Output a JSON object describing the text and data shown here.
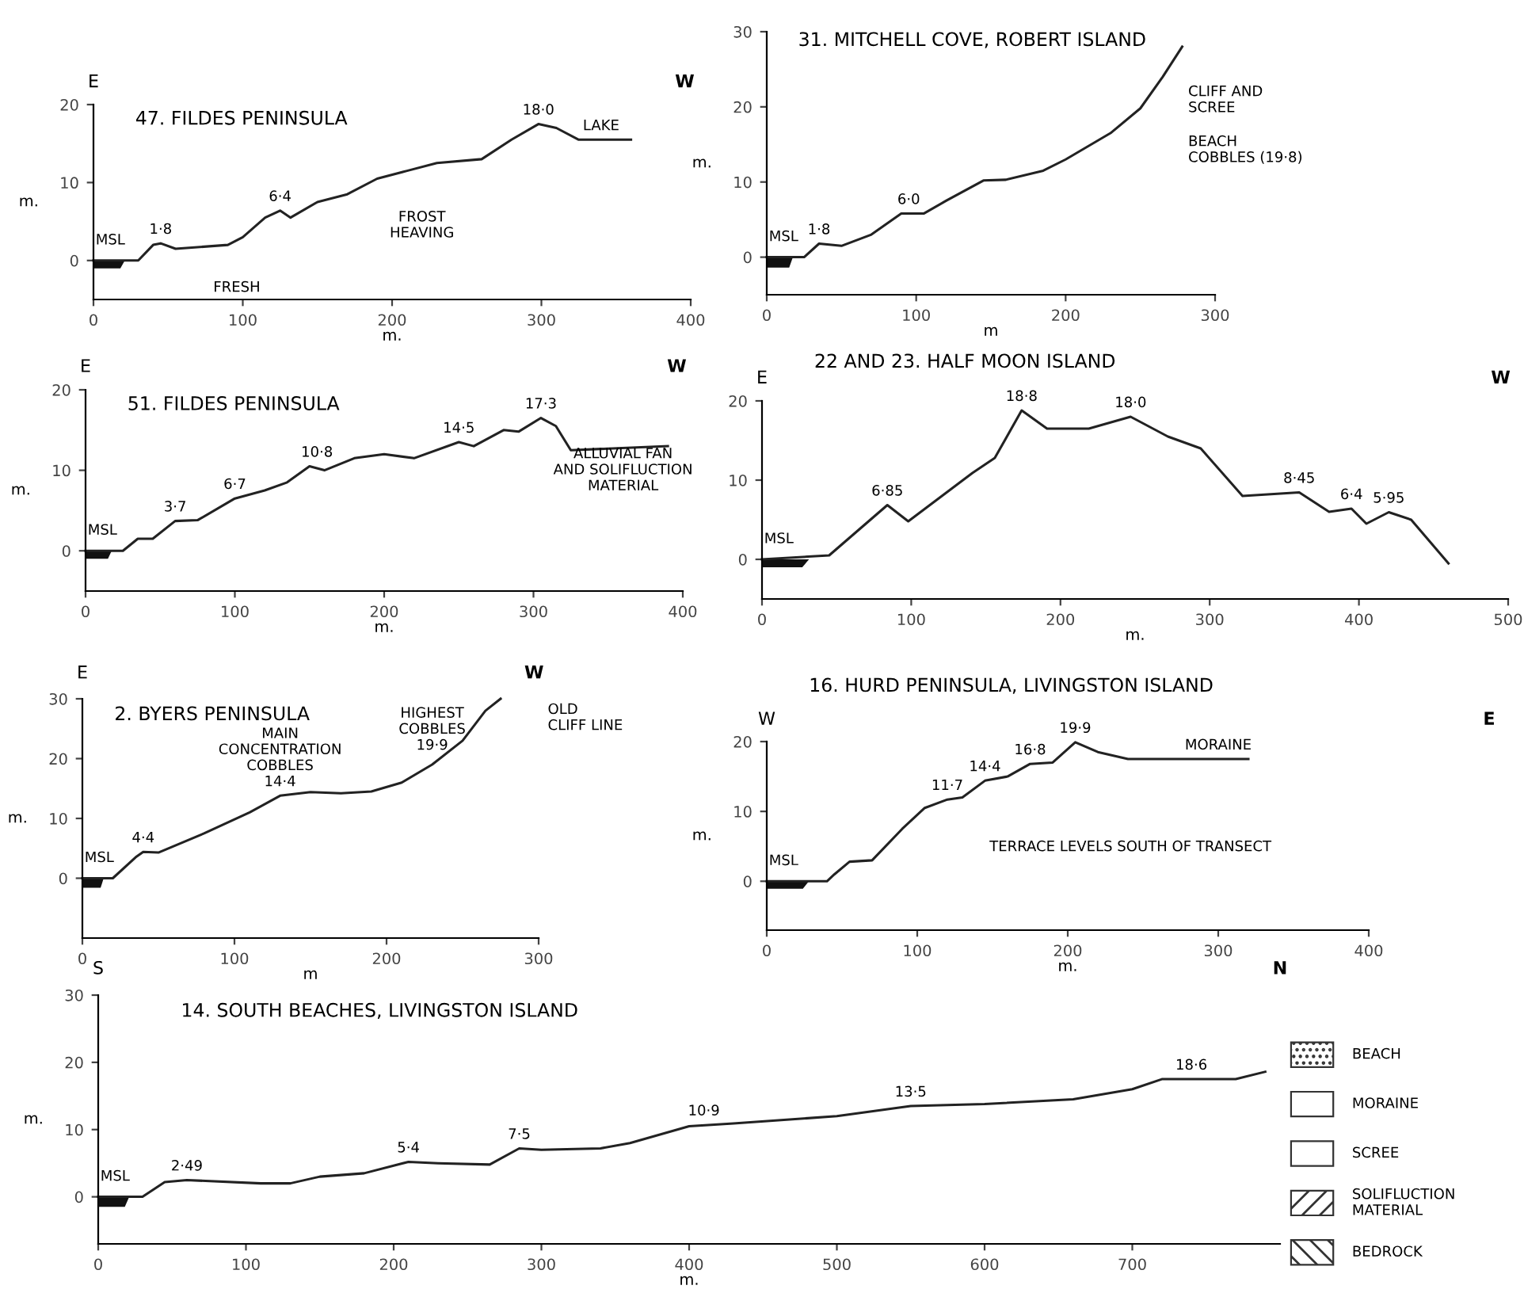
{
  "chart_data": [
    {
      "type": "line",
      "title": "47. FILDES PENINSULA",
      "xlabel": "m.",
      "ylabel": "m.",
      "xlim": [
        0,
        400
      ],
      "ylim": [
        -5,
        20
      ],
      "xticks": [
        0,
        100,
        200,
        300,
        400
      ],
      "yticks": [
        0,
        10,
        20
      ],
      "grid": false,
      "legend": false,
      "marker": "none",
      "line_style": "solid",
      "series": [
        {
          "color": "#222222",
          "x": [
            0,
            30,
            40,
            45,
            55,
            90,
            100,
            115,
            125,
            132,
            150,
            170,
            190,
            210,
            230,
            260,
            280,
            298,
            310,
            325,
            360
          ],
          "values": [
            0,
            0,
            2,
            2.2,
            1.5,
            2,
            3,
            5.5,
            6.4,
            5.5,
            7.5,
            8.5,
            10.5,
            11.5,
            12.5,
            13,
            15.5,
            17.5,
            17,
            15.5,
            15.5
          ]
        }
      ],
      "annotations": [
        "E",
        "W",
        {
          "text": "MSL",
          "x": 0,
          "y": 0
        },
        {
          "text": "1·8",
          "x": 45,
          "y": 2.2
        },
        {
          "text": "6·4",
          "x": 125,
          "y": 6.4
        },
        {
          "text": "18·0",
          "x": 298,
          "y": 17.5
        },
        {
          "text": "LAKE",
          "x": 340,
          "y": 15.5
        },
        "FROST\nHEAVING",
        "FRESH"
      ]
    },
    {
      "type": "line",
      "title": "31. MITCHELL COVE, ROBERT ISLAND",
      "xlabel": "m",
      "ylabel": "m.",
      "xlim": [
        0,
        300
      ],
      "ylim": [
        -5,
        30
      ],
      "xticks": [
        0,
        100,
        200,
        300
      ],
      "yticks": [
        0,
        10,
        20,
        30
      ],
      "grid": false,
      "legend": false,
      "marker": "none",
      "line_style": "solid",
      "series": [
        {
          "color": "#222222",
          "x": [
            0,
            25,
            35,
            50,
            70,
            90,
            105,
            120,
            145,
            160,
            185,
            200,
            230,
            250,
            265,
            278
          ],
          "values": [
            0,
            0,
            1.8,
            1.5,
            3,
            5.8,
            5.8,
            7.5,
            10.2,
            10.3,
            11.5,
            13,
            16.5,
            19.8,
            24,
            28
          ]
        }
      ],
      "annotations": [
        {
          "text": "MSL",
          "x": 0,
          "y": 0
        },
        {
          "text": "1·8",
          "x": 35,
          "y": 1.8
        },
        {
          "text": "6·0",
          "x": 95,
          "y": 5.8
        },
        "CLIFF AND\nSCREE",
        "BEACH\nCOBBLES (19·8)"
      ]
    },
    {
      "type": "line",
      "title": "51. FILDES PENINSULA",
      "xlabel": "m.",
      "ylabel": "m.",
      "xlim": [
        0,
        400
      ],
      "ylim": [
        -5,
        20
      ],
      "xticks": [
        0,
        100,
        200,
        300,
        400
      ],
      "yticks": [
        0,
        10,
        20
      ],
      "grid": false,
      "legend": false,
      "marker": "none",
      "line_style": "solid",
      "series": [
        {
          "color": "#222222",
          "x": [
            0,
            25,
            35,
            45,
            60,
            75,
            100,
            120,
            135,
            150,
            160,
            180,
            200,
            220,
            250,
            260,
            280,
            290,
            305,
            315,
            325,
            390
          ],
          "values": [
            0,
            0,
            1.5,
            1.5,
            3.7,
            3.8,
            6.5,
            7.5,
            8.5,
            10.5,
            10,
            11.5,
            12,
            11.5,
            13.5,
            13,
            15,
            14.8,
            16.5,
            15.5,
            12.5,
            13
          ]
        }
      ],
      "annotations": [
        "E",
        "W",
        {
          "text": "MSL",
          "x": 0,
          "y": 0
        },
        {
          "text": "3·7",
          "x": 60,
          "y": 3.7
        },
        {
          "text": "6·7",
          "x": 100,
          "y": 6.5
        },
        {
          "text": "10·8",
          "x": 155,
          "y": 10.5
        },
        {
          "text": "14·5",
          "x": 250,
          "y": 13.5
        },
        {
          "text": "17·3",
          "x": 305,
          "y": 16.5
        },
        "ALLUVIAL FAN\nAND SOLIFLUCTION\nMATERIAL"
      ]
    },
    {
      "type": "line",
      "title": "22 AND 23. HALF MOON ISLAND",
      "xlabel": "m.",
      "xlim": [
        0,
        500
      ],
      "ylim": [
        -5,
        20
      ],
      "xticks": [
        0,
        100,
        200,
        300,
        400,
        500
      ],
      "yticks": [
        0,
        10,
        20
      ],
      "grid": false,
      "legend": false,
      "marker": "none",
      "line_style": "solid",
      "series": [
        {
          "color": "#222222",
          "x": [
            0,
            45,
            84,
            98,
            141,
            156,
            174,
            191,
            219,
            247,
            272,
            294,
            322,
            360,
            380,
            395,
            405,
            420,
            435,
            460
          ],
          "values": [
            0,
            0.5,
            6.85,
            4.8,
            10.9,
            12.8,
            18.8,
            16.5,
            16.5,
            18,
            15.5,
            14,
            8,
            8.45,
            6,
            6.4,
            4.5,
            5.95,
            5,
            -0.5
          ]
        }
      ],
      "annotations": [
        "E",
        "W",
        {
          "text": "MSL",
          "x": 0,
          "y": 0
        },
        {
          "text": "6·85",
          "x": 84,
          "y": 6.85
        },
        {
          "text": "18·8",
          "x": 174,
          "y": 18.8
        },
        {
          "text": "18·0",
          "x": 247,
          "y": 18
        },
        {
          "text": "8·45",
          "x": 360,
          "y": 8.45
        },
        {
          "text": "6·4",
          "x": 395,
          "y": 6.4
        },
        {
          "text": "5·95",
          "x": 420,
          "y": 5.95
        }
      ]
    },
    {
      "type": "line",
      "title": "2. BYERS PENINSULA",
      "xlabel": "m",
      "ylabel": "m.",
      "xlim": [
        0,
        300
      ],
      "ylim": [
        -10,
        30
      ],
      "xticks": [
        0,
        100,
        200,
        300
      ],
      "yticks": [
        0,
        10,
        20,
        30
      ],
      "grid": false,
      "legend": false,
      "marker": "none",
      "line_style": "solid",
      "series": [
        {
          "color": "#222222",
          "x": [
            0,
            20,
            35,
            40,
            50,
            80,
            110,
            130,
            150,
            170,
            190,
            210,
            230,
            250,
            265,
            275
          ],
          "values": [
            0,
            0,
            3.5,
            4.4,
            4.3,
            7.5,
            11,
            13.8,
            14.4,
            14.2,
            14.5,
            16,
            19,
            23,
            28,
            30
          ]
        }
      ],
      "annotations": [
        "E",
        "W",
        {
          "text": "MSL",
          "x": 0,
          "y": 0
        },
        {
          "text": "4·4",
          "x": 40,
          "y": 4.4
        },
        {
          "text": "MAIN\nCONCENTRATION\nCOBBLES\n14·4",
          "x": 130,
          "y": 13.8
        },
        {
          "text": "HIGHEST\nCOBBLES\n19·9",
          "x": 230,
          "y": 19.9
        },
        "OLD\nCLIFF LINE"
      ]
    },
    {
      "type": "line",
      "title": "16. HURD PENINSULA, LIVINGSTON ISLAND",
      "xlabel": "m.",
      "ylabel": "m.",
      "xlim": [
        0,
        400
      ],
      "ylim": [
        -7,
        20
      ],
      "xticks": [
        0,
        100,
        200,
        300,
        400
      ],
      "yticks": [
        0,
        10,
        20
      ],
      "grid": false,
      "legend": false,
      "marker": "none",
      "line_style": "solid",
      "series": [
        {
          "color": "#222222",
          "x": [
            0,
            40,
            45,
            55,
            70,
            90,
            105,
            120,
            130,
            145,
            160,
            175,
            190,
            205,
            220,
            240,
            320
          ],
          "values": [
            0,
            0,
            1,
            2.8,
            3,
            7.5,
            10.5,
            11.7,
            12,
            14.4,
            15,
            16.8,
            17,
            19.9,
            18.5,
            17.5,
            17.5
          ]
        }
      ],
      "annotations": [
        "W",
        "E",
        {
          "text": "MSL",
          "x": 0,
          "y": 0
        },
        {
          "text": "11·7",
          "x": 120,
          "y": 11.7
        },
        {
          "text": "14·4",
          "x": 145,
          "y": 14.4
        },
        {
          "text": "16·8",
          "x": 175,
          "y": 16.8
        },
        {
          "text": "19·9",
          "x": 205,
          "y": 19.9
        },
        {
          "text": "MORAINE",
          "x": 300,
          "y": 17.5
        },
        "TERRACE LEVELS SOUTH OF TRANSECT"
      ]
    },
    {
      "type": "line",
      "title": "14. SOUTH BEACHES, LIVINGSTON ISLAND",
      "xlabel": "m.",
      "ylabel": "m.",
      "xlim": [
        0,
        800
      ],
      "ylim": [
        -7,
        30
      ],
      "xticks": [
        0,
        100,
        200,
        300,
        400,
        500,
        600,
        700
      ],
      "yticks": [
        0,
        10,
        20,
        30
      ],
      "grid": false,
      "legend": false,
      "marker": "none",
      "line_style": "solid",
      "series": [
        {
          "color": "#222222",
          "x": [
            0,
            30,
            45,
            60,
            110,
            130,
            150,
            180,
            210,
            230,
            265,
            285,
            300,
            340,
            360,
            400,
            430,
            500,
            550,
            600,
            660,
            700,
            720,
            770,
            790
          ],
          "values": [
            0,
            0,
            2.2,
            2.49,
            2,
            2,
            3,
            3.5,
            5.2,
            5,
            4.8,
            7.2,
            7,
            7.2,
            8,
            10.5,
            10.9,
            12,
            13.5,
            13.8,
            14.5,
            16,
            17.5,
            17.5,
            18.6
          ]
        }
      ],
      "annotations": [
        "S",
        "N",
        {
          "text": "MSL",
          "x": 0,
          "y": 0
        },
        {
          "text": "2·49",
          "x": 60,
          "y": 2.49
        },
        {
          "text": "5·4",
          "x": 210,
          "y": 5.2
        },
        {
          "text": "7·5",
          "x": 285,
          "y": 7.2
        },
        {
          "text": "10·9",
          "x": 410,
          "y": 10.7
        },
        {
          "text": "13·5",
          "x": 550,
          "y": 13.5
        },
        {
          "text": "18·6",
          "x": 740,
          "y": 17.5
        }
      ]
    },
    {
      "type": "other",
      "annotations": [
        "BEACH",
        "MORAINE",
        "SCREE",
        "SOLIFLUCTION\nMATERIAL",
        "BEDROCK"
      ]
    }
  ]
}
